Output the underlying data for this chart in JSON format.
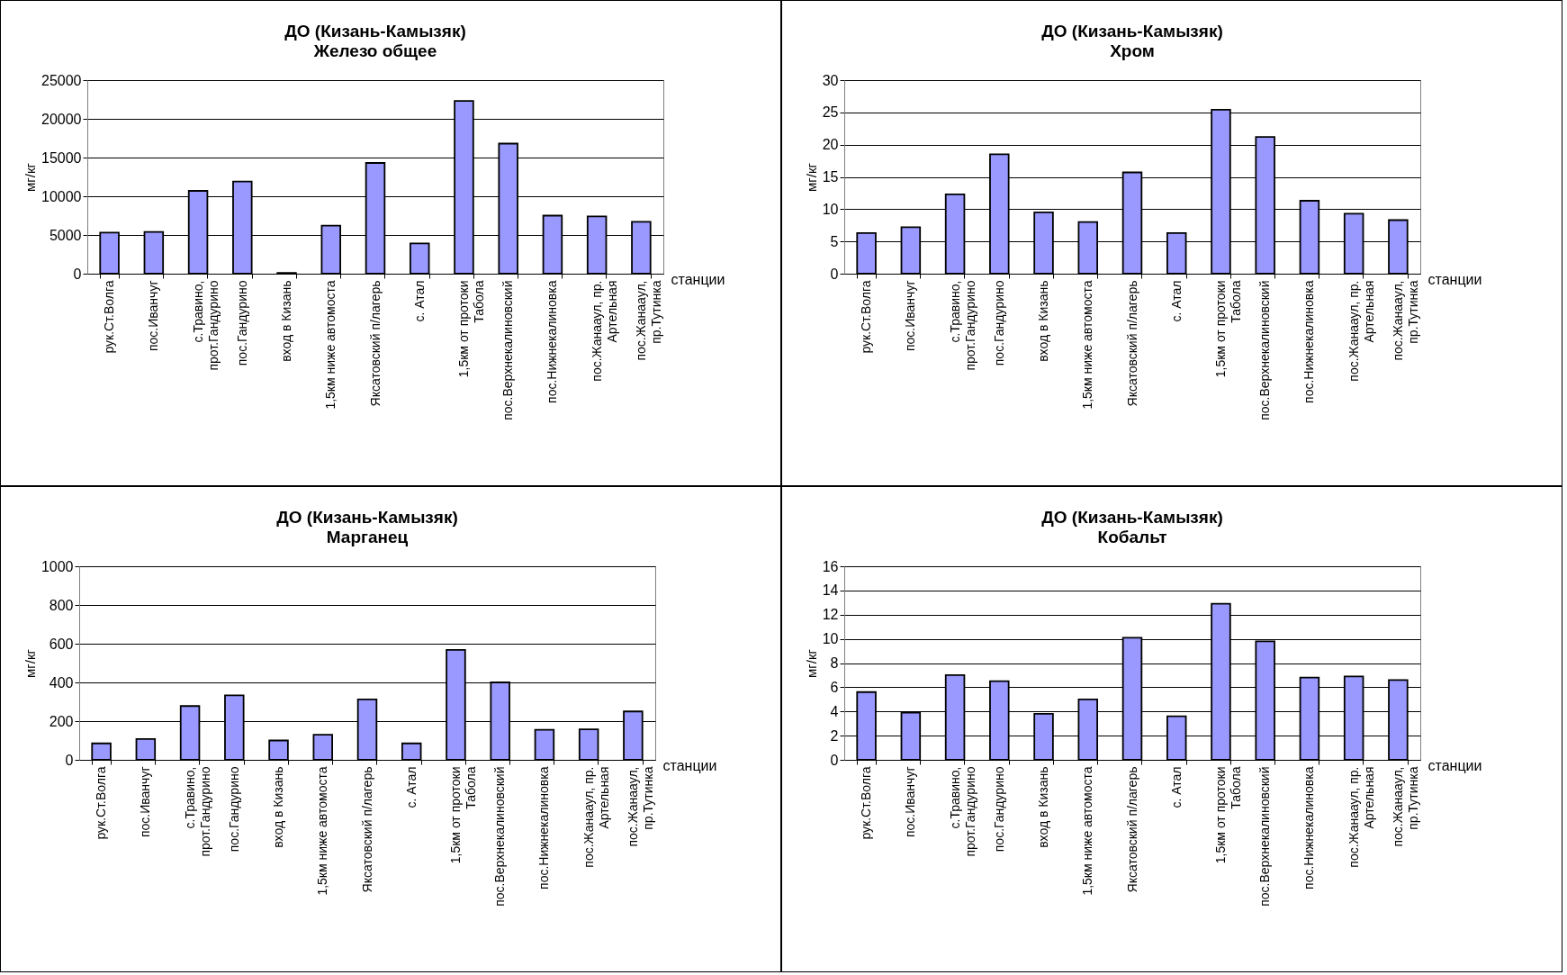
{
  "chart_data": [
    {
      "type": "bar",
      "title": "ДО (Кизань-Камызяк)",
      "subtitle": "Железо общее",
      "xlabel": "станции",
      "ylabel": "мг/кг",
      "categories": [
        "рук.Ст.Волга",
        "пос.Иванчуг",
        "с.Травино,\nпрот.Гандурино",
        "пос.Гандурино",
        "вход в Кизань",
        "1,5км ниже автомоста",
        "Яксатовский п/лагерь",
        "с. Атал",
        "1,5км от протоки\nТабола",
        "пос.Верхнекалиновский",
        "пос.Нижнекалиновка",
        "пос.Жанааул, пр.\nАртельная",
        "пос.Жанааул,\nпр.Тутинка"
      ],
      "values": [
        5300,
        5400,
        10700,
        11900,
        100,
        6200,
        14300,
        3900,
        22300,
        16800,
        7500,
        7400,
        6700
      ],
      "color": "#9999ff",
      "ylim": [
        0,
        25000
      ],
      "yticks": [
        0,
        5000,
        10000,
        15000,
        20000,
        25000
      ],
      "grid": "y"
    },
    {
      "type": "bar",
      "title": "ДО (Кизань-Камызяк)",
      "subtitle": "Хром",
      "xlabel": "станции",
      "ylabel": "мг/кг",
      "categories": [
        "рук.Ст.Волга",
        "пос.Иванчуг",
        "с.Травино,\nпрот.Гандурино",
        "пос.Гандурино",
        "вход в Кизань",
        "1,5км ниже автомоста",
        "Яксатовский п/лагерь",
        "с. Атал",
        "1,5км от протоки\nТабола",
        "пос.Верхнекалиновский",
        "пос.Нижнекалиновка",
        "пос.Жанааул, пр.\nАртельная",
        "пос.Жанааул,\nпр.Тутинка"
      ],
      "values": [
        6.3,
        7.2,
        12.3,
        18.5,
        9.5,
        8.0,
        15.7,
        6.3,
        25.4,
        21.2,
        11.3,
        9.3,
        8.3
      ],
      "color": "#9999ff",
      "ylim": [
        0,
        30
      ],
      "yticks": [
        0,
        5,
        10,
        15,
        20,
        25,
        30
      ],
      "grid": "y"
    },
    {
      "type": "bar",
      "title": "ДО (Кизань-Камызяк)",
      "subtitle": "Марганец",
      "xlabel": "станции",
      "ylabel": "мг/кг",
      "categories": [
        "рук.Ст.Волга",
        "пос.Иванчуг",
        "с.Травино,\nпрот.Гандурино",
        "пос.Гандурино",
        "вход в Кизань",
        "1,5км ниже автомоста",
        "Яксатовский п/лагерь",
        "с. Атал",
        "1,5км от протоки\nТабола",
        "пос.Верхнекалиновский",
        "пос.Нижнекалиновка",
        "пос.Жанааул, пр.\nАртельная",
        "пос.Жанааул,\nпр.Тутинка"
      ],
      "values": [
        85,
        108,
        278,
        333,
        100,
        130,
        312,
        85,
        568,
        400,
        155,
        158,
        250
      ],
      "color": "#9999ff",
      "ylim": [
        0,
        1000
      ],
      "yticks": [
        0,
        200,
        400,
        600,
        800,
        1000
      ],
      "grid": "y"
    },
    {
      "type": "bar",
      "title": "ДО (Кизань-Камызяк)",
      "subtitle": "Кобальт",
      "xlabel": "станции",
      "ylabel": "мг/кг",
      "categories": [
        "рук.Ст.Волга",
        "пос.Иванчуг",
        "с.Травино,\nпрот.Гандурино",
        "пос.Гандурино",
        "вход в Кизань",
        "1,5км ниже автомоста",
        "Яксатовский п/лагерь",
        "с. Атал",
        "1,5км от протоки\nТабола",
        "пос.Верхнекалиновский",
        "пос.Нижнекалиновка",
        "пос.Жанааул, пр.\nАртельная",
        "пос.Жанааул,\nпр.Тутинка"
      ],
      "values": [
        5.6,
        3.9,
        7.0,
        6.5,
        3.8,
        5.0,
        10.1,
        3.6,
        12.9,
        9.8,
        6.8,
        6.9,
        6.6
      ],
      "color": "#9999ff",
      "ylim": [
        0,
        16
      ],
      "yticks": [
        0,
        2,
        4,
        6,
        8,
        10,
        12,
        14,
        16
      ],
      "grid": "y"
    }
  ]
}
